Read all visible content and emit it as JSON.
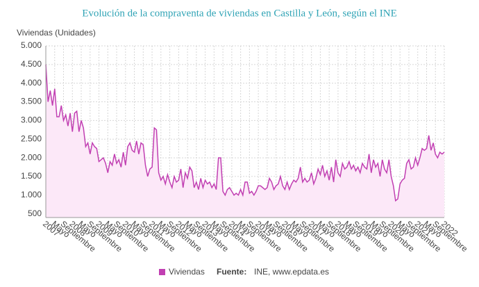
{
  "chart_data": {
    "type": "area-line",
    "title": "Evolución de la compraventa de viviendas en Castilla y León, según el INE",
    "y_axis_label": "Viviendas (Unidades)",
    "source_label": "Fuente:",
    "source": "INE, www.epdata.es",
    "grid": true,
    "ylim": [
      400,
      5000
    ],
    "yticks": [
      {
        "value": 500,
        "label": "500"
      },
      {
        "value": 1000,
        "label": "1.000"
      },
      {
        "value": 1500,
        "label": "1.500"
      },
      {
        "value": 2000,
        "label": "2.000"
      },
      {
        "value": 2500,
        "label": "2.500"
      },
      {
        "value": 3000,
        "label": "3.000"
      },
      {
        "value": 3500,
        "label": "3.500"
      },
      {
        "value": 4000,
        "label": "4.000"
      },
      {
        "value": 4500,
        "label": "4.500"
      },
      {
        "value": 5000,
        "label": "5.000"
      }
    ],
    "categories": [
      "2007",
      null,
      null,
      null,
      "Mayo",
      null,
      null,
      null,
      "Septiembre",
      null,
      null,
      null,
      "2008",
      null,
      null,
      null,
      "Mayo",
      null,
      null,
      null,
      "Septiembre",
      null,
      null,
      null,
      "2009",
      null,
      null,
      null,
      "Mayo",
      null,
      null,
      null,
      "Septiembre",
      null,
      null,
      null,
      "2010",
      null,
      null,
      null,
      "Mayo",
      null,
      null,
      null,
      "Septiembre",
      null,
      null,
      null,
      "2011",
      null,
      null,
      null,
      "Mayo",
      null,
      null,
      null,
      "Septiembre",
      null,
      null,
      null,
      "2012",
      null,
      null,
      null,
      "Mayo",
      null,
      null,
      null,
      "Septiembre",
      null,
      null,
      null,
      "2013",
      null,
      null,
      null,
      "Mayo",
      null,
      null,
      null,
      "Septiembre",
      null,
      null,
      null,
      "2014",
      null,
      null,
      null,
      "Mayo",
      null,
      null,
      null,
      "Septiembre",
      null,
      null,
      null,
      "2015",
      null,
      null,
      null,
      "Mayo",
      null,
      null,
      null,
      "Septiembre",
      null,
      null,
      null,
      "2016",
      null,
      null,
      null,
      "Mayo",
      null,
      null,
      null,
      "Septiembre",
      null,
      null,
      null,
      "2017",
      null,
      null,
      null,
      "Mayo",
      null,
      null,
      null,
      "Septiembre",
      null,
      null,
      null,
      "2018",
      null,
      null,
      null,
      "Mayo",
      null,
      null,
      null,
      "Septiembre",
      null,
      null,
      null,
      "2019",
      null,
      null,
      null,
      "Mayo",
      null,
      null,
      null,
      "Septiembre",
      null,
      null,
      null,
      "2020",
      null,
      null,
      null,
      "Mayo",
      null,
      null,
      null,
      "Septiembre",
      null,
      null,
      null,
      "2021",
      null,
      null,
      null,
      "Mayo",
      null,
      null,
      null,
      "Septiembre",
      null,
      null,
      null,
      "2022"
    ],
    "series": [
      {
        "name": "Viviendas",
        "color": "#c13fb2",
        "fill": "#fce8f8",
        "values": [
          4500,
          3500,
          3800,
          3400,
          3850,
          3100,
          3100,
          3400,
          3000,
          3150,
          2850,
          3200,
          2700,
          3200,
          3250,
          2700,
          3000,
          2800,
          2300,
          2400,
          2100,
          2400,
          2300,
          2250,
          1900,
          1950,
          2000,
          1850,
          1600,
          1900,
          1800,
          2100,
          1850,
          1950,
          1750,
          2150,
          1800,
          2300,
          2400,
          2200,
          2150,
          2450,
          2100,
          2400,
          2350,
          1800,
          1500,
          1700,
          1750,
          2800,
          2750,
          1600,
          1400,
          1500,
          1300,
          1550,
          1350,
          1200,
          1500,
          1350,
          1400,
          1700,
          1200,
          1600,
          1450,
          1750,
          1650,
          1200,
          1350,
          1150,
          1450,
          1200,
          1400,
          1300,
          1350,
          1200,
          1300,
          1150,
          2000,
          2000,
          1100,
          1000,
          1150,
          1200,
          1100,
          1000,
          1050,
          1000,
          1150,
          1000,
          1350,
          1350,
          1050,
          1100,
          1000,
          1100,
          1250,
          1250,
          1200,
          1150,
          1200,
          1450,
          1350,
          1150,
          1250,
          1300,
          1500,
          1250,
          1150,
          1350,
          1150,
          1300,
          1400,
          1350,
          1450,
          1750,
          1350,
          1450,
          1350,
          1400,
          1600,
          1300,
          1450,
          1700,
          1550,
          1800,
          1500,
          1650,
          1400,
          1750,
          1350,
          1950,
          1600,
          1500,
          1850,
          1700,
          1750,
          1900,
          1700,
          1800,
          1650,
          1750,
          1600,
          1850,
          1750,
          1700,
          2100,
          1600,
          1950,
          1750,
          1850,
          1500,
          1950,
          1700,
          1600,
          1950,
          1500,
          1250,
          850,
          900,
          1300,
          1400,
          1450,
          1850,
          1950,
          1700,
          1750,
          2000,
          1800,
          2000,
          2250,
          2200,
          2250,
          2600,
          2200,
          2400,
          2100,
          2000,
          2150,
          2100,
          2150
        ]
      }
    ]
  }
}
